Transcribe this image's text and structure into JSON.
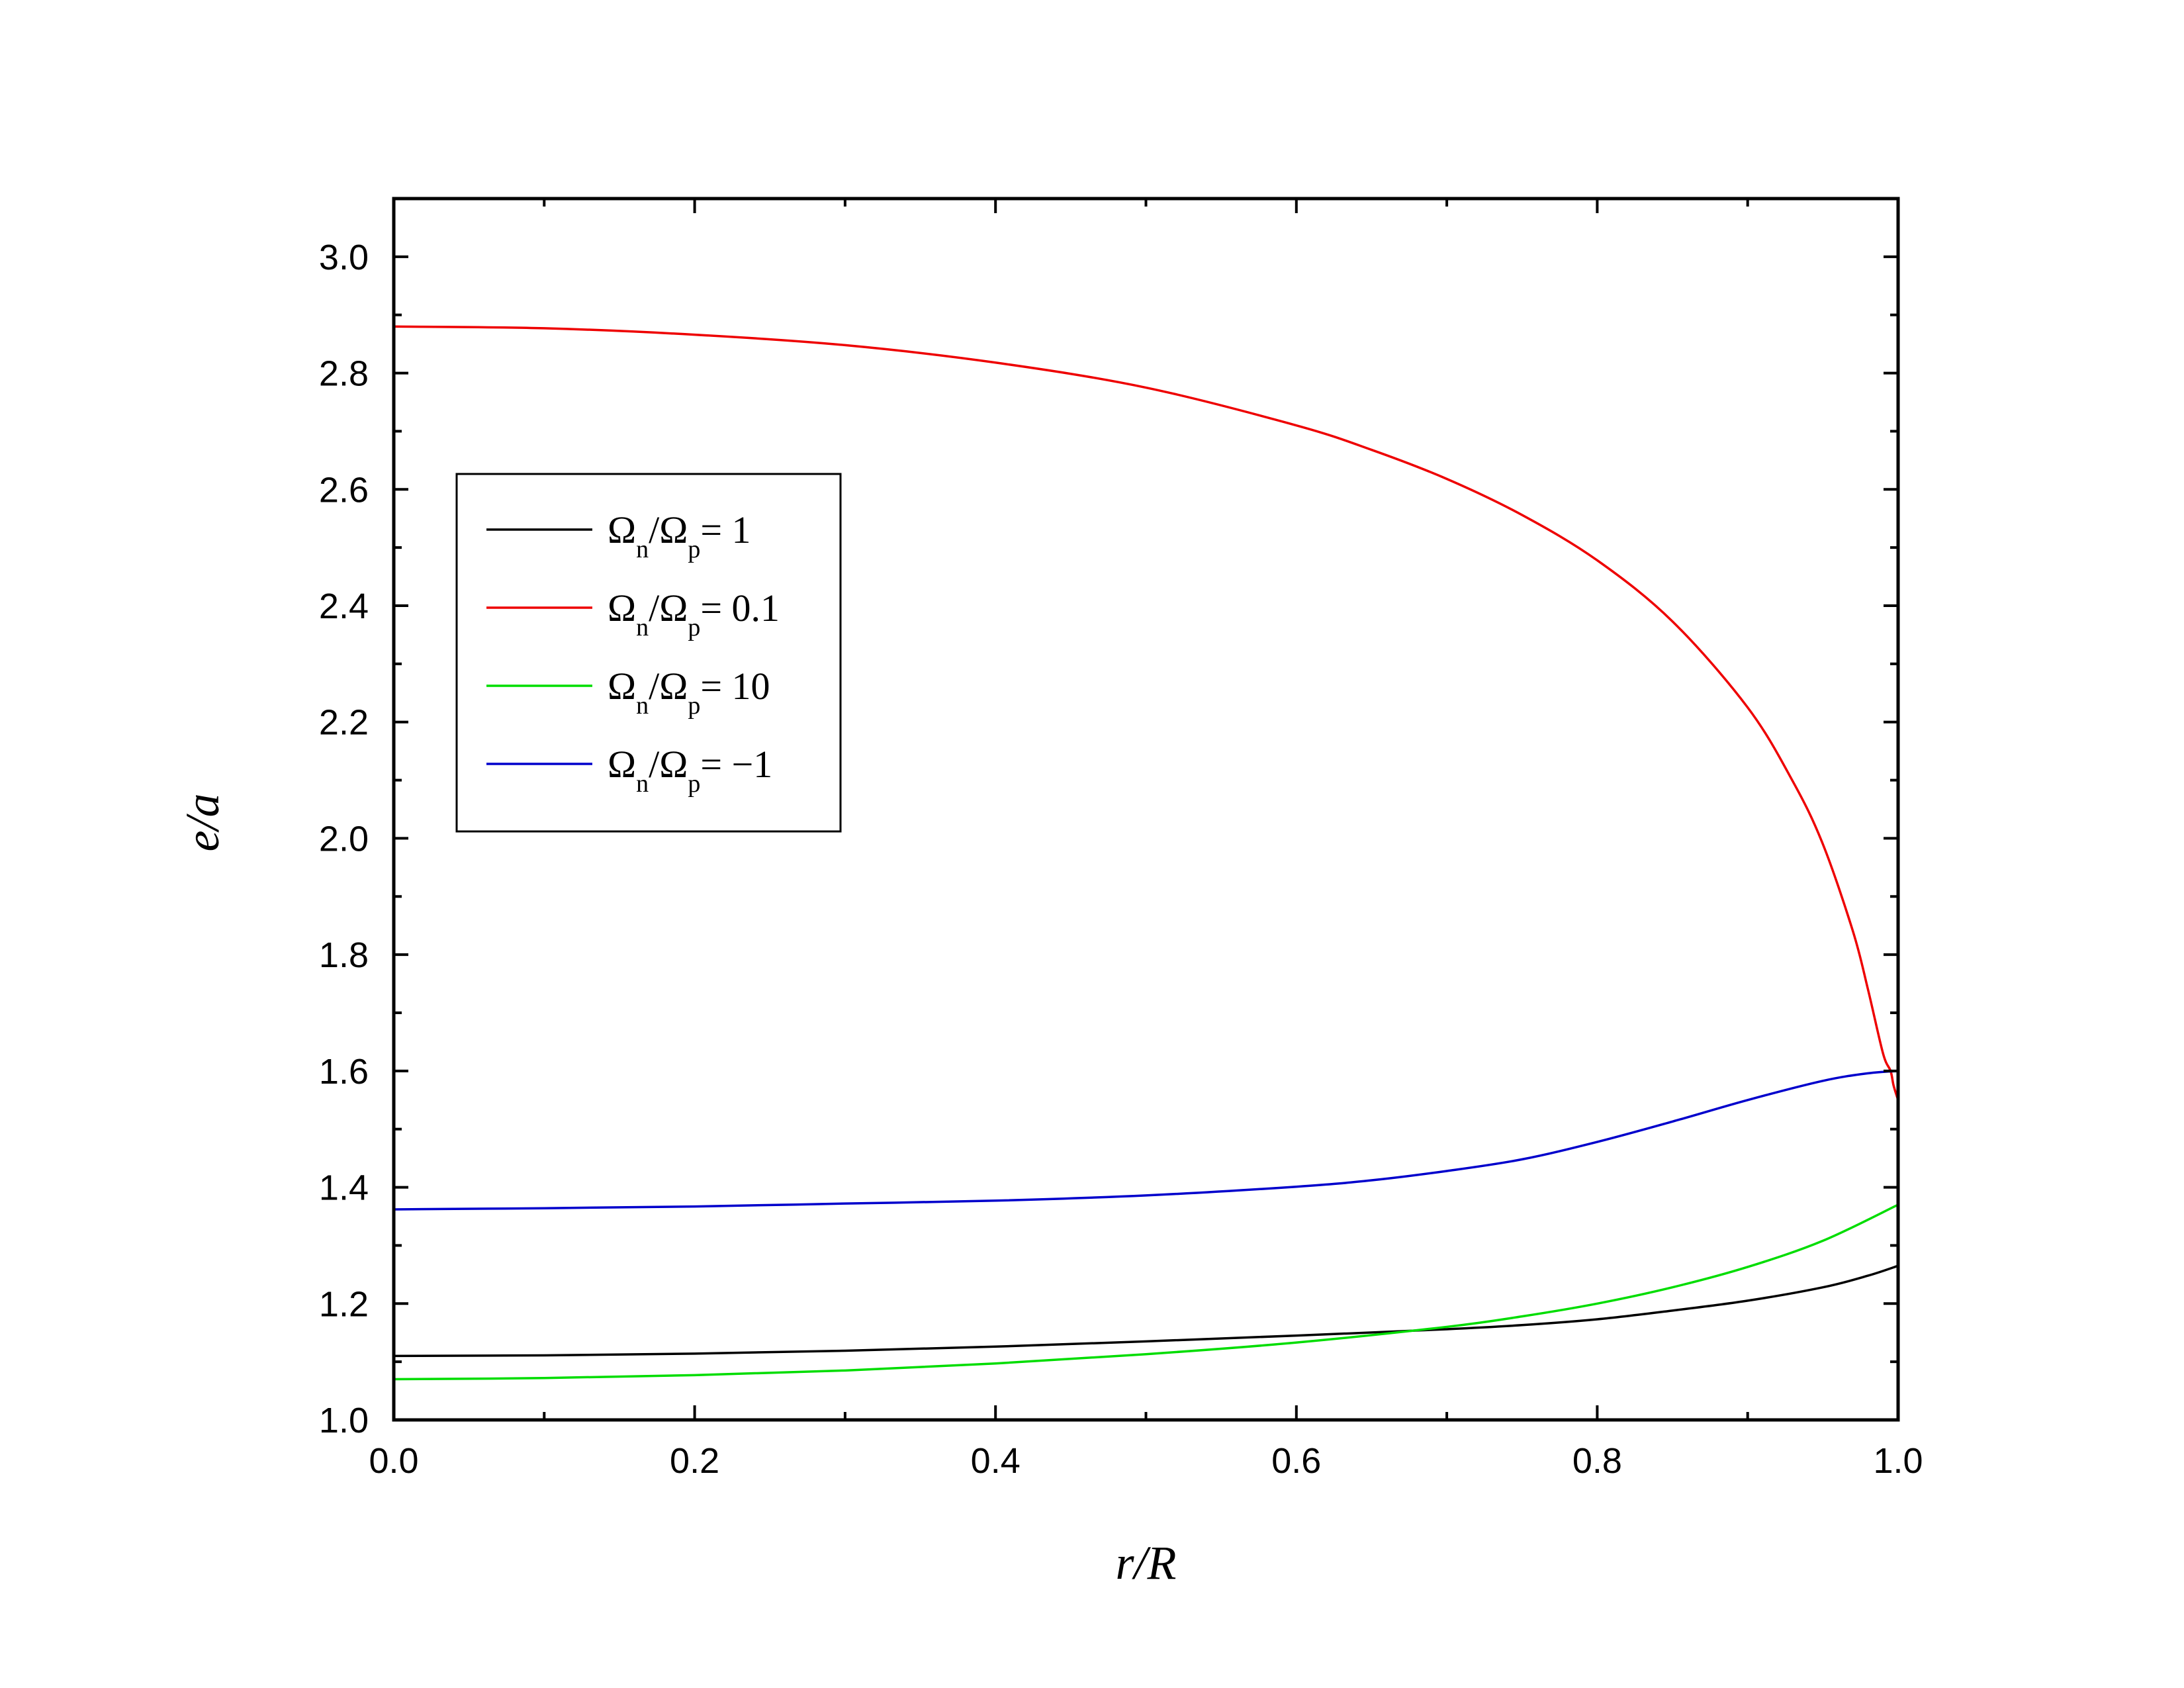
{
  "chart_data": {
    "type": "line",
    "xlabel": "r/R",
    "ylabel": "e/a",
    "xlim": [
      0.0,
      1.0
    ],
    "ylim": [
      1.0,
      3.1
    ],
    "x_ticks": [
      "0.0",
      "0.2",
      "0.4",
      "0.6",
      "0.8",
      "1.0"
    ],
    "y_ticks": [
      "1.0",
      "1.2",
      "1.4",
      "1.6",
      "1.8",
      "2.0",
      "2.2",
      "2.4",
      "2.6",
      "2.8",
      "3.0"
    ],
    "grid": false,
    "legend_position": "upper-left",
    "series": [
      {
        "name": "Ωn/Ωp = 1",
        "legend": {
          "omega": "Ω",
          "sub1": "n",
          "slash": "/",
          "sub2": "p",
          "value": "= 1"
        },
        "color": "#000000",
        "x": [
          0.0,
          0.1,
          0.2,
          0.3,
          0.4,
          0.5,
          0.6,
          0.7,
          0.75,
          0.8,
          0.85,
          0.9,
          0.95,
          0.98,
          1.0
        ],
        "y": [
          1.11,
          1.111,
          1.114,
          1.119,
          1.126,
          1.135,
          1.145,
          1.156,
          1.163,
          1.173,
          1.188,
          1.205,
          1.228,
          1.248,
          1.265
        ]
      },
      {
        "name": "Ωn/Ωp = 0.1",
        "legend": {
          "omega": "Ω",
          "sub1": "n",
          "slash": "/",
          "sub2": "p",
          "value": "= 0.1"
        },
        "color": "#ee0000",
        "x": [
          0.0,
          0.1,
          0.2,
          0.3,
          0.4,
          0.5,
          0.6,
          0.65,
          0.7,
          0.75,
          0.8,
          0.85,
          0.9,
          0.93,
          0.95,
          0.97,
          0.98,
          0.99,
          0.995,
          0.997,
          1.0
        ],
        "y": [
          2.88,
          2.877,
          2.866,
          2.848,
          2.818,
          2.775,
          2.71,
          2.668,
          2.618,
          2.556,
          2.478,
          2.373,
          2.225,
          2.098,
          1.99,
          1.84,
          1.74,
          1.63,
          1.6,
          1.575,
          1.55
        ]
      },
      {
        "name": "Ωn/Ωp = 10",
        "legend": {
          "omega": "Ω",
          "sub1": "n",
          "slash": "/",
          "sub2": "p",
          "value": "= 10"
        },
        "color": "#00dd00",
        "x": [
          0.0,
          0.1,
          0.2,
          0.3,
          0.4,
          0.5,
          0.6,
          0.7,
          0.75,
          0.8,
          0.85,
          0.9,
          0.95,
          1.0
        ],
        "y": [
          1.07,
          1.072,
          1.077,
          1.085,
          1.097,
          1.113,
          1.133,
          1.16,
          1.178,
          1.2,
          1.228,
          1.263,
          1.308,
          1.37
        ]
      },
      {
        "name": "Ωn/Ωp = −1",
        "legend": {
          "omega": "Ω",
          "sub1": "n",
          "slash": "/",
          "sub2": "p",
          "value": "= −1"
        },
        "color": "#0000cc",
        "x": [
          0.0,
          0.1,
          0.2,
          0.3,
          0.4,
          0.5,
          0.6,
          0.65,
          0.7,
          0.75,
          0.8,
          0.85,
          0.9,
          0.95,
          0.98,
          1.0
        ],
        "y": [
          1.362,
          1.364,
          1.367,
          1.372,
          1.377,
          1.386,
          1.401,
          1.412,
          1.428,
          1.448,
          1.478,
          1.513,
          1.55,
          1.583,
          1.596,
          1.6
        ]
      }
    ]
  }
}
